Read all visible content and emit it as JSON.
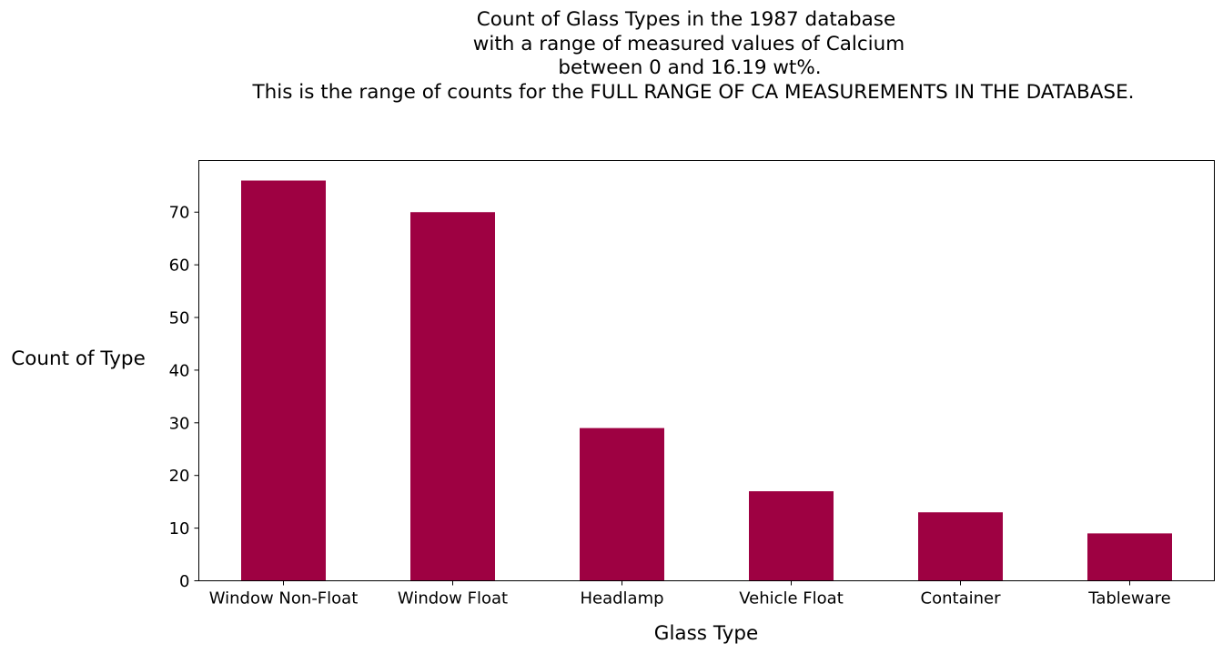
{
  "chart_data": {
    "type": "bar",
    "title_lines": [
      "Count of Glass Types in the 1987 database",
      "with a range of measured values of Calcium",
      "between 0 and 16.19 wt%.",
      "This is the range of counts for the FULL RANGE OF CA MEASUREMENTS IN THE DATABASE."
    ],
    "xlabel": "Glass Type",
    "ylabel": "Count of Type",
    "categories": [
      "Window Non-Float",
      "Window Float",
      "Headlamp",
      "Vehicle Float",
      "Container",
      "Tableware"
    ],
    "values": [
      76,
      70,
      29,
      17,
      13,
      9
    ],
    "ylim": [
      0,
      79.8
    ],
    "yticks": [
      0,
      10,
      20,
      30,
      40,
      50,
      60,
      70
    ],
    "bar_color": "#9e0142",
    "grid": false,
    "legend": "none"
  }
}
